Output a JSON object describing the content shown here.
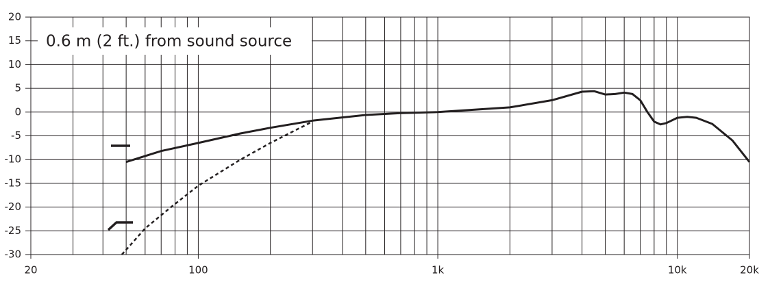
{
  "chart_data": {
    "type": "line",
    "annotation": "0.6 m (2 ft.) from sound source",
    "xscale": "log",
    "xlim": [
      20,
      20000
    ],
    "ylim": [
      -30,
      20
    ],
    "xticks": [
      20,
      100,
      {
        "value": 1000,
        "label": "1k"
      },
      {
        "value": 10000,
        "label": "10k"
      },
      {
        "value": 20000,
        "label": "20k"
      }
    ],
    "xgrid_minor": [
      30,
      40,
      50,
      60,
      70,
      80,
      90,
      200,
      300,
      400,
      500,
      600,
      700,
      800,
      900,
      2000,
      3000,
      4000,
      5000,
      6000,
      7000,
      8000,
      9000
    ],
    "yticks": [
      20,
      15,
      10,
      5,
      0,
      -5,
      -10,
      -15,
      -20,
      -25,
      -30
    ],
    "grid": true,
    "series": [
      {
        "color": "#231f20",
        "dashed": false,
        "x": [
          50,
          70,
          100,
          150,
          200,
          300,
          500,
          700,
          1000,
          2000,
          3000,
          4000,
          4500,
          5000,
          5500,
          6000,
          6500,
          7000,
          7500,
          8000,
          8500,
          9000,
          10000,
          11000,
          12000,
          14000,
          17000,
          20000
        ],
        "values": [
          -10.5,
          -8.2,
          -6.5,
          -4.5,
          -3.3,
          -1.8,
          -0.6,
          -0.2,
          0,
          1,
          2.5,
          4.3,
          4.4,
          3.7,
          3.8,
          4.1,
          3.8,
          2.5,
          0,
          -2,
          -2.6,
          -2.3,
          -1.2,
          -1,
          -1.2,
          -2.5,
          -6,
          -10.5
        ]
      },
      {
        "color": "#231f20",
        "dashed": true,
        "x": [
          48,
          60,
          77,
          100,
          150,
          200,
          250,
          300
        ],
        "values": [
          -30,
          -24.5,
          -20,
          -15.5,
          -10,
          -6.5,
          -4,
          -2
        ]
      }
    ]
  }
}
